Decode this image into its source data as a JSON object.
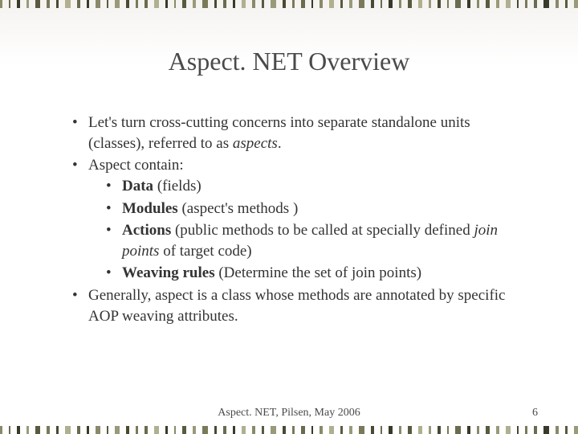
{
  "title": "Aspect. NET Overview",
  "bullets": {
    "b1_pre": "Let's turn cross-cutting concerns into separate standalone units (classes), referred to as ",
    "b1_em": "aspects",
    "b1_post": ".",
    "b2": "Aspect contain:",
    "b2a_bold": "Data",
    "b2a_rest": " (fields)",
    "b2b_bold": "Modules",
    "b2b_rest": " (aspect's methods )",
    "b2c_bold": "Actions",
    "b2c_mid": " (public methods to be called at specially defined ",
    "b2c_em": "join points",
    "b2c_post": " of target code)",
    "b2d_bold": "Weaving rules",
    "b2d_rest": " (Determine the set of join points)",
    "b3": "Generally, aspect is a class whose methods are annotated by specific AOP weaving attributes."
  },
  "footer": {
    "center": "Aspect. NET, Pilsen, May 2006",
    "page": "6"
  },
  "border": {
    "stripe_widths": [
      4,
      3,
      6,
      4,
      8,
      5,
      4,
      10,
      6,
      4,
      7,
      3,
      9,
      5,
      4,
      6,
      8,
      4,
      3,
      7,
      5,
      10,
      4,
      6,
      3,
      8,
      5,
      4,
      9,
      6,
      4,
      7,
      3,
      5,
      8,
      4,
      6,
      10,
      5,
      3,
      7,
      4,
      6,
      8,
      4,
      5,
      3,
      9,
      6,
      4,
      7,
      5,
      8,
      4,
      3,
      6,
      10,
      5,
      4,
      7
    ],
    "stripe_colors": [
      "#8a8a6a",
      "#6b6b4f",
      "#3a3a2a",
      "#9a9a7a",
      "#5a5a3f",
      "#7a7a5a",
      "#4a4a34",
      "#b0b090",
      "#6b6b4f",
      "#3a3a2a",
      "#8a8a6a",
      "#5a5a3f",
      "#9a9a7a",
      "#4a4a34",
      "#7a7a5a",
      "#6b6b4f",
      "#b0b090",
      "#3a3a2a",
      "#8a8a6a",
      "#5a5a3f",
      "#9a9a7a",
      "#7a7a5a",
      "#4a4a34",
      "#6b6b4f",
      "#3a3a2a",
      "#b0b090",
      "#8a8a6a",
      "#5a5a3f",
      "#9a9a7a",
      "#4a4a34",
      "#7a7a5a",
      "#6b6b4f",
      "#3a3a2a",
      "#8a8a6a",
      "#b0b090",
      "#5a5a3f",
      "#9a9a7a",
      "#7a7a5a",
      "#4a4a34",
      "#6b6b4f",
      "#3a3a2a",
      "#8a8a6a",
      "#5a5a3f",
      "#b0b090",
      "#9a9a7a",
      "#4a4a34",
      "#7a7a5a",
      "#6b6b4f",
      "#3a3a2a",
      "#8a8a6a",
      "#5a5a3f",
      "#9a9a7a",
      "#b0b090",
      "#4a4a34",
      "#7a7a5a",
      "#6b6b4f",
      "#3a3a2a",
      "#8a8a6a",
      "#5a5a3f",
      "#9a9a7a"
    ]
  },
  "styling": {
    "background_gradient_top": "#f5f3f0",
    "background_gradient_bottom": "#ffffff",
    "title_color": "#4a4a4a",
    "title_fontsize": 32,
    "body_fontsize": 19,
    "body_color": "#333333",
    "footer_fontsize": 14,
    "footer_color": "#4a4a4a",
    "font_family": "Times New Roman"
  }
}
